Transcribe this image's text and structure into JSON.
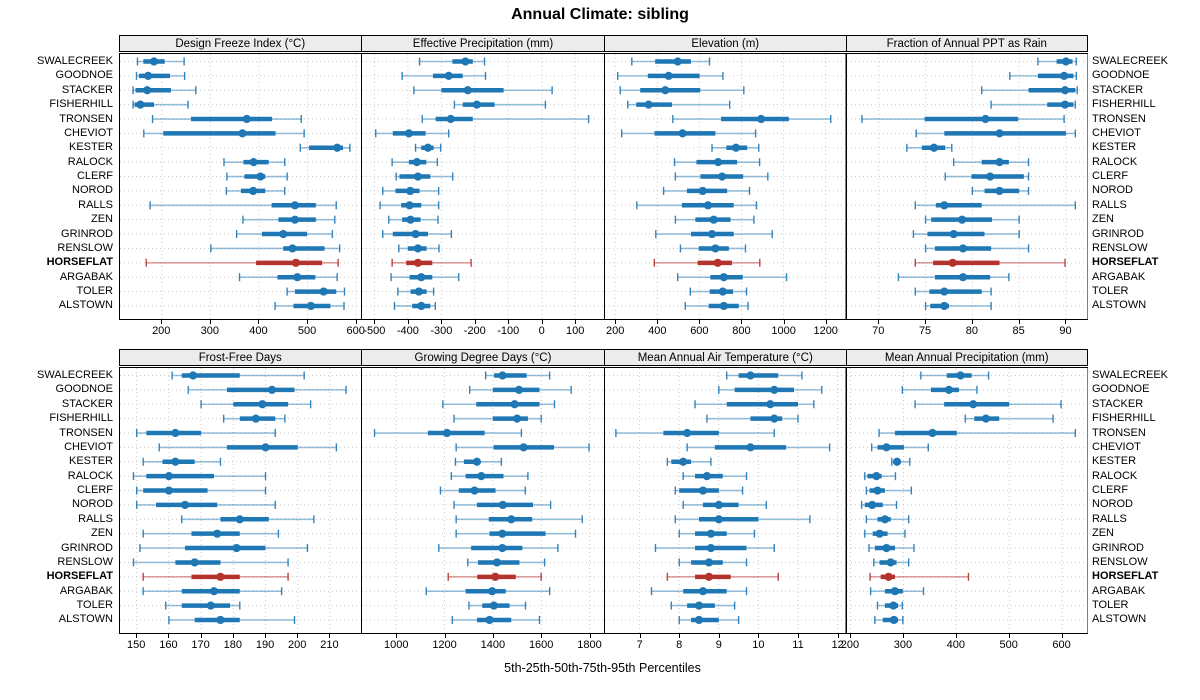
{
  "title": "Annual Climate: sibling",
  "caption": "5th-25th-50th-75th-95th Percentiles",
  "stations": [
    "SWALECREEK",
    "GOODNOE",
    "STACKER",
    "FISHERHILL",
    "TRONSEN",
    "CHEVIOT",
    "KESTER",
    "RALOCK",
    "CLERF",
    "NOROD",
    "RALLS",
    "ZEN",
    "GRINROD",
    "RENSLOW",
    "HORSEFLAT",
    "ARGABAK",
    "TOLER",
    "ALSTOWN"
  ],
  "highlight_station": "HORSEFLAT",
  "colors": {
    "series_blue": "#1f77b4",
    "series_red": "#b5322d",
    "grid": "#c9c9c9",
    "header_bg": "#ececec",
    "border": "#000000"
  },
  "chart_data": [
    {
      "type": "dotplot-percentiles",
      "title": "Design Freeze Index (°C)",
      "percentiles": [
        5,
        25,
        50,
        75,
        95
      ],
      "xlim": [
        112,
        611
      ],
      "ticks": [
        200,
        300,
        400,
        500,
        600
      ],
      "values": [
        [
          150,
          162,
          184,
          206,
          246
        ],
        [
          148,
          153,
          172,
          217,
          247
        ],
        [
          141,
          146,
          170,
          219,
          270
        ],
        [
          141,
          144,
          156,
          184,
          254
        ],
        [
          181,
          260,
          375,
          427,
          487
        ],
        [
          163,
          203,
          366,
          434,
          493
        ],
        [
          485,
          503,
          561,
          573,
          587
        ],
        [
          328,
          368,
          389,
          420,
          453
        ],
        [
          334,
          370,
          403,
          413,
          458
        ],
        [
          333,
          363,
          388,
          413,
          453
        ],
        [
          176,
          426,
          474,
          517,
          559
        ],
        [
          367,
          440,
          474,
          517,
          556
        ],
        [
          354,
          406,
          450,
          499,
          551
        ],
        [
          301,
          450,
          469,
          535,
          566
        ],
        [
          168,
          394,
          476,
          530,
          563
        ],
        [
          360,
          438,
          479,
          516,
          561
        ],
        [
          458,
          474,
          533,
          559,
          576
        ],
        [
          433,
          471,
          507,
          547,
          575
        ]
      ]
    },
    {
      "type": "dotplot-percentiles",
      "title": "Effective Precipitation (mm)",
      "percentiles": [
        5,
        25,
        50,
        75,
        95
      ],
      "xlim": [
        -540,
        186
      ],
      "ticks": [
        -500,
        -400,
        -300,
        -200,
        -100,
        0,
        100
      ],
      "values": [
        [
          -365,
          -267,
          -228,
          -206,
          -171
        ],
        [
          -417,
          -325,
          -278,
          -236,
          -168
        ],
        [
          -382,
          -300,
          -221,
          -114,
          31
        ],
        [
          -261,
          -236,
          -194,
          -141,
          11
        ],
        [
          -357,
          -317,
          -272,
          -206,
          140
        ],
        [
          -496,
          -445,
          -397,
          -347,
          -278
        ],
        [
          -377,
          -360,
          -340,
          -323,
          -302
        ],
        [
          -447,
          -397,
          -373,
          -345,
          -312
        ],
        [
          -435,
          -425,
          -370,
          -333,
          -266
        ],
        [
          -475,
          -437,
          -393,
          -365,
          -308
        ],
        [
          -483,
          -420,
          -395,
          -360,
          -308
        ],
        [
          -457,
          -417,
          -392,
          -362,
          -310
        ],
        [
          -475,
          -445,
          -377,
          -340,
          -270
        ],
        [
          -427,
          -400,
          -370,
          -344,
          -307
        ],
        [
          -447,
          -405,
          -370,
          -327,
          -211
        ],
        [
          -450,
          -395,
          -360,
          -327,
          -248
        ],
        [
          -430,
          -392,
          -367,
          -344,
          -323
        ],
        [
          -440,
          -387,
          -360,
          -333,
          -318
        ]
      ]
    },
    {
      "type": "dotplot-percentiles",
      "title": "Elevation (m)",
      "percentiles": [
        5,
        25,
        50,
        75,
        95
      ],
      "xlim": [
        147,
        1294
      ],
      "ticks": [
        200,
        400,
        600,
        800,
        1000,
        1200
      ],
      "values": [
        [
          279,
          390,
          497,
          560,
          648
        ],
        [
          212,
          355,
          454,
          601,
          712
        ],
        [
          224,
          319,
          438,
          604,
          811
        ],
        [
          260,
          300,
          359,
          470,
          744
        ],
        [
          474,
          703,
          893,
          1025,
          1224
        ],
        [
          231,
          387,
          520,
          676,
          867
        ],
        [
          660,
          728,
          774,
          827,
          882
        ],
        [
          482,
          586,
          689,
          779,
          886
        ],
        [
          486,
          605,
          708,
          808,
          925
        ],
        [
          430,
          541,
          616,
          732,
          838
        ],
        [
          303,
          517,
          641,
          763,
          871
        ],
        [
          486,
          581,
          668,
          748,
          859
        ],
        [
          393,
          560,
          660,
          763,
          946
        ],
        [
          510,
          597,
          676,
          740,
          819
        ],
        [
          386,
          592,
          687,
          755,
          887
        ],
        [
          497,
          652,
          716,
          806,
          1014
        ],
        [
          557,
          649,
          711,
          760,
          824
        ],
        [
          533,
          644,
          716,
          787,
          831
        ]
      ]
    },
    {
      "type": "dotplot-percentiles",
      "title": "Fraction of Annual PPT as Rain",
      "percentiles": [
        5,
        25,
        50,
        75,
        95
      ],
      "xlim": [
        66.5,
        92.3
      ],
      "ticks": [
        70,
        75,
        80,
        85,
        90
      ],
      "values": [
        [
          87,
          89,
          90,
          90.7,
          91.1
        ],
        [
          84,
          87,
          89.8,
          90.8,
          91.1
        ],
        [
          81,
          86,
          89.9,
          91,
          91.2
        ],
        [
          82,
          88,
          89.9,
          90.8,
          91
        ],
        [
          68.2,
          74.9,
          81.4,
          84.9,
          89.8
        ],
        [
          74,
          77,
          82.9,
          90,
          91
        ],
        [
          73,
          74.6,
          75.9,
          77.1,
          77.8
        ],
        [
          78,
          81,
          82.9,
          83.9,
          86
        ],
        [
          77.1,
          79.9,
          81.9,
          85.5,
          86
        ],
        [
          80,
          81.3,
          82.9,
          85,
          86
        ],
        [
          73.9,
          76.1,
          77,
          81,
          91
        ],
        [
          75,
          75.6,
          78.9,
          82.1,
          85
        ],
        [
          73.7,
          75.2,
          78,
          81.3,
          85
        ],
        [
          75,
          76,
          79,
          82,
          86
        ],
        [
          73.9,
          75.8,
          77.9,
          82.9,
          89.9
        ],
        [
          72.1,
          76,
          79,
          81.9,
          83.9
        ],
        [
          73.9,
          75.4,
          77,
          81,
          82
        ],
        [
          75,
          75.5,
          77,
          77.5,
          82
        ]
      ]
    },
    {
      "type": "dotplot-percentiles",
      "title": "Frost-Free Days",
      "percentiles": [
        5,
        25,
        50,
        75,
        95
      ],
      "xlim": [
        144.5,
        219.8
      ],
      "ticks": [
        150,
        160,
        170,
        180,
        190,
        200,
        210
      ],
      "values": [
        [
          161,
          164,
          167.5,
          182,
          202
        ],
        [
          166,
          178,
          192,
          199,
          215
        ],
        [
          170,
          180,
          189,
          197,
          204
        ],
        [
          177,
          182,
          187,
          193,
          196
        ],
        [
          150,
          153,
          162,
          170,
          193
        ],
        [
          157,
          178,
          190,
          200,
          212
        ],
        [
          152,
          158,
          162,
          168,
          176
        ],
        [
          149,
          153,
          160,
          174,
          190
        ],
        [
          150,
          152,
          160,
          172,
          190
        ],
        [
          150,
          156,
          165,
          175,
          193
        ],
        [
          164,
          176,
          182,
          191,
          205
        ],
        [
          152,
          167,
          175,
          182,
          194
        ],
        [
          151,
          165,
          181,
          190,
          203
        ],
        [
          149,
          162,
          168,
          176,
          197
        ],
        [
          152,
          167,
          176,
          182,
          197
        ],
        [
          152,
          164,
          174,
          182,
          195
        ],
        [
          159,
          164,
          173,
          179,
          182
        ],
        [
          160,
          168,
          176,
          182,
          199
        ]
      ]
    },
    {
      "type": "dotplot-percentiles",
      "title": "Growing Degree Days (°C)",
      "percentiles": [
        5,
        25,
        50,
        75,
        95
      ],
      "xlim": [
        854,
        1860
      ],
      "ticks": [
        1000,
        1200,
        1400,
        1600,
        1800
      ],
      "values": [
        [
          1370,
          1405,
          1440,
          1540,
          1635
        ],
        [
          1304,
          1400,
          1508,
          1593,
          1724
        ],
        [
          1193,
          1331,
          1490,
          1593,
          1655
        ],
        [
          1239,
          1400,
          1500,
          1545,
          1600
        ],
        [
          910,
          1131,
          1210,
          1366,
          1518
        ],
        [
          1248,
          1403,
          1527,
          1653,
          1798
        ],
        [
          1245,
          1280,
          1334,
          1345,
          1435
        ],
        [
          1228,
          1287,
          1352,
          1444,
          1545
        ],
        [
          1183,
          1259,
          1324,
          1411,
          1534
        ],
        [
          1239,
          1334,
          1441,
          1566,
          1639
        ],
        [
          1248,
          1383,
          1476,
          1563,
          1770
        ],
        [
          1248,
          1386,
          1439,
          1618,
          1742
        ],
        [
          1176,
          1310,
          1439,
          1522,
          1669
        ],
        [
          1296,
          1338,
          1417,
          1510,
          1614
        ],
        [
          1215,
          1335,
          1410,
          1495,
          1600
        ],
        [
          1124,
          1287,
          1397,
          1453,
          1635
        ],
        [
          1301,
          1356,
          1404,
          1469,
          1535
        ],
        [
          1232,
          1334,
          1386,
          1476,
          1593
        ]
      ]
    },
    {
      "type": "dotplot-percentiles",
      "title": "Mean Annual Air Temperature (°C)",
      "percentiles": [
        5,
        25,
        50,
        75,
        95
      ],
      "xlim": [
        6.1,
        12.2
      ],
      "ticks": [
        7,
        8,
        9,
        10,
        11,
        12
      ],
      "values": [
        [
          9.2,
          9.5,
          9.8,
          10.5,
          11.1
        ],
        [
          9.0,
          9.4,
          10.4,
          10.9,
          11.6
        ],
        [
          8.4,
          9.2,
          10.3,
          11.0,
          11.4
        ],
        [
          8.7,
          9.8,
          10.4,
          10.6,
          11.0
        ],
        [
          6.4,
          7.6,
          8.2,
          9.0,
          10.4
        ],
        [
          8.2,
          8.9,
          9.8,
          10.7,
          11.8
        ],
        [
          7.7,
          7.8,
          8.1,
          8.3,
          8.8
        ],
        [
          8.1,
          8.4,
          8.7,
          9.1,
          9.7
        ],
        [
          7.9,
          8.0,
          8.6,
          9.0,
          9.6
        ],
        [
          8.1,
          8.6,
          9.0,
          9.5,
          10.2
        ],
        [
          7.9,
          8.5,
          9.0,
          10.0,
          11.3
        ],
        [
          8.0,
          8.4,
          8.8,
          9.2,
          9.9
        ],
        [
          7.4,
          8.4,
          8.8,
          9.7,
          10.4
        ],
        [
          8.0,
          8.3,
          8.75,
          9.1,
          9.7
        ],
        [
          7.7,
          8.4,
          8.75,
          9.3,
          10.5
        ],
        [
          7.3,
          8.1,
          8.6,
          9.2,
          9.7
        ],
        [
          7.8,
          8.2,
          8.5,
          8.9,
          9.4
        ],
        [
          8.0,
          8.3,
          8.5,
          9.0,
          9.5
        ]
      ]
    },
    {
      "type": "dotplot-percentiles",
      "title": "Mean Annual Precipitation (mm)",
      "percentiles": [
        5,
        25,
        50,
        75,
        95
      ],
      "xlim": [
        191.5,
        648
      ],
      "ticks": [
        200,
        300,
        400,
        500,
        600
      ],
      "values": [
        [
          333,
          382,
          408,
          429,
          461
        ],
        [
          298,
          352,
          386,
          405,
          439
        ],
        [
          322,
          377,
          432,
          500,
          598
        ],
        [
          417,
          434,
          456,
          481,
          583
        ],
        [
          254,
          284,
          355,
          401,
          625
        ],
        [
          240,
          251,
          268,
          301,
          347
        ],
        [
          278,
          281,
          288,
          293,
          312
        ],
        [
          227,
          232,
          249,
          259,
          285
        ],
        [
          230,
          236,
          251,
          265,
          315
        ],
        [
          221,
          227,
          241,
          261,
          287
        ],
        [
          230,
          251,
          265,
          276,
          310
        ],
        [
          227,
          242,
          255,
          270,
          303
        ],
        [
          235,
          246,
          268,
          284,
          320
        ],
        [
          244,
          255,
          276,
          287,
          310
        ],
        [
          237,
          257,
          272,
          284,
          423
        ],
        [
          238,
          265,
          284,
          299,
          338
        ],
        [
          251,
          265,
          281,
          290,
          298
        ],
        [
          246,
          261,
          282,
          290,
          299
        ]
      ]
    }
  ]
}
